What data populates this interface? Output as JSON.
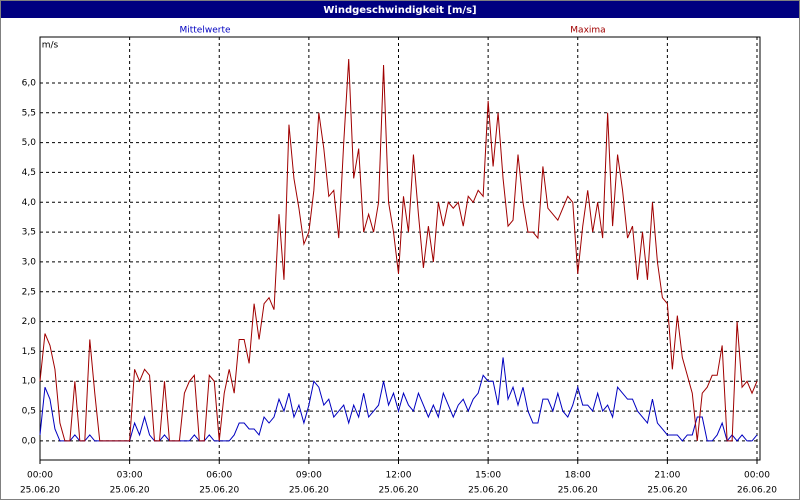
{
  "chart_data": {
    "type": "line",
    "title": "Windgeschwindigkeit [m/s]",
    "y_label": "m/s",
    "x": [
      0,
      10,
      20,
      30,
      40,
      50,
      60,
      70,
      80,
      90,
      100,
      110,
      120,
      130,
      140,
      150,
      160,
      170,
      180,
      190,
      200,
      210,
      220,
      230,
      240,
      250,
      260,
      270,
      280,
      290,
      300,
      310,
      320,
      330,
      340,
      350,
      360,
      370,
      380,
      390,
      400,
      410,
      420,
      430,
      440,
      450,
      460,
      470,
      480,
      490,
      500,
      510,
      520,
      530,
      540,
      550,
      560,
      570,
      580,
      590,
      600,
      610,
      620,
      630,
      640,
      650,
      660,
      670,
      680,
      690,
      700,
      710,
      720,
      730,
      740,
      750,
      760,
      770,
      780,
      790,
      800,
      810,
      820,
      830,
      840,
      850,
      860,
      870,
      880,
      890,
      900,
      910,
      920,
      930,
      940,
      950,
      960,
      970,
      980,
      990,
      1000,
      1010,
      1020,
      1030,
      1040,
      1050,
      1060,
      1070,
      1080,
      1090,
      1100,
      1110,
      1120,
      1130,
      1140,
      1150,
      1160,
      1170,
      1180,
      1190,
      1200,
      1210,
      1220,
      1230,
      1240,
      1250,
      1260,
      1270,
      1280,
      1290,
      1300,
      1310,
      1320,
      1330,
      1340,
      1350,
      1360,
      1370,
      1380,
      1390,
      1400,
      1410,
      1420,
      1430,
      1440
    ],
    "series": [
      {
        "name": "Mittelwerte",
        "color": "#0000c0",
        "values": [
          0.1,
          0.9,
          0.7,
          0.2,
          0,
          0,
          0,
          0.1,
          0,
          0,
          0.1,
          0,
          0,
          0,
          0,
          0,
          0,
          0,
          0,
          0.3,
          0.1,
          0.4,
          0.1,
          0,
          0,
          0.1,
          0,
          0,
          0,
          0,
          0,
          0.1,
          0,
          0,
          0.1,
          0,
          0,
          0,
          0,
          0.1,
          0.3,
          0.3,
          0.2,
          0.2,
          0.1,
          0.4,
          0.3,
          0.4,
          0.7,
          0.5,
          0.8,
          0.4,
          0.6,
          0.3,
          0.6,
          1.0,
          0.9,
          0.6,
          0.7,
          0.4,
          0.5,
          0.6,
          0.3,
          0.6,
          0.4,
          0.8,
          0.4,
          0.5,
          0.6,
          1.0,
          0.6,
          0.8,
          0.5,
          0.8,
          0.6,
          0.5,
          0.8,
          0.6,
          0.4,
          0.6,
          0.4,
          0.8,
          0.6,
          0.4,
          0.6,
          0.7,
          0.5,
          0.7,
          0.8,
          1.1,
          1.0,
          1.0,
          0.6,
          1.4,
          0.7,
          0.9,
          0.6,
          0.9,
          0.5,
          0.3,
          0.3,
          0.7,
          0.7,
          0.5,
          0.8,
          0.5,
          0.4,
          0.6,
          0.9,
          0.6,
          0.6,
          0.5,
          0.8,
          0.5,
          0.6,
          0.4,
          0.9,
          0.8,
          0.7,
          0.7,
          0.5,
          0.4,
          0.3,
          0.7,
          0.3,
          0.2,
          0.1,
          0.1,
          0.1,
          0,
          0.1,
          0.1,
          0.4,
          0.4,
          0,
          0,
          0.1,
          0.3,
          0,
          0.1,
          0,
          0.1,
          0,
          0,
          0.1
        ]
      },
      {
        "name": "Maxima",
        "color": "#a00000",
        "values": [
          1.0,
          1.8,
          1.6,
          1.2,
          0.3,
          0,
          0,
          1.0,
          0,
          0,
          1.7,
          0.8,
          0,
          0,
          0,
          0,
          0,
          0,
          0,
          1.2,
          1.0,
          1.2,
          1.1,
          0,
          0,
          1.0,
          0,
          0,
          0,
          0.8,
          1.0,
          1.1,
          0,
          0,
          1.1,
          1.0,
          0,
          0.8,
          1.2,
          0.8,
          1.7,
          1.7,
          1.3,
          2.3,
          1.7,
          2.3,
          2.4,
          2.2,
          3.8,
          2.7,
          5.3,
          4.4,
          3.9,
          3.3,
          3.5,
          4.2,
          5.5,
          4.9,
          4.1,
          4.2,
          3.4,
          5.0,
          6.4,
          4.4,
          4.9,
          3.5,
          3.8,
          3.5,
          4.0,
          6.3,
          4.0,
          3.5,
          2.8,
          4.1,
          3.5,
          4.8,
          3.8,
          2.9,
          3.6,
          3.0,
          4.0,
          3.6,
          4.0,
          3.9,
          4.0,
          3.6,
          4.1,
          4.0,
          4.2,
          4.1,
          5.7,
          4.6,
          5.5,
          4.4,
          3.6,
          3.7,
          4.8,
          4.0,
          3.5,
          3.5,
          3.4,
          4.6,
          3.9,
          3.8,
          3.7,
          3.9,
          4.1,
          4.0,
          2.8,
          3.6,
          4.2,
          3.5,
          4.0,
          3.4,
          5.5,
          3.6,
          4.8,
          4.2,
          3.4,
          3.6,
          2.7,
          3.5,
          2.7,
          4.0,
          3.0,
          2.4,
          2.3,
          1.2,
          2.1,
          1.4,
          1.1,
          0.8,
          0,
          0.8,
          0.9,
          1.1,
          1.1,
          1.6,
          0,
          0,
          2.0,
          0.9,
          1.0,
          0.8,
          1.0
        ]
      }
    ],
    "xlim": [
      0,
      1440
    ],
    "xticks": [
      {
        "value": 0,
        "label": "00:00",
        "date": "25.06.20"
      },
      {
        "value": 180,
        "label": "03:00",
        "date": "25.06.20"
      },
      {
        "value": 360,
        "label": "06:00",
        "date": "25.06.20"
      },
      {
        "value": 540,
        "label": "09:00",
        "date": "25.06.20"
      },
      {
        "value": 720,
        "label": "12:00",
        "date": "25.06.20"
      },
      {
        "value": 900,
        "label": "15:00",
        "date": "25.06.20"
      },
      {
        "value": 1080,
        "label": "18:00",
        "date": "25.06.20"
      },
      {
        "value": 1260,
        "label": "21:00",
        "date": "25.06.20"
      },
      {
        "value": 1440,
        "label": "00:00",
        "date": "26.06.20"
      }
    ],
    "ylim": [
      -0.32,
      6.77
    ],
    "yticks": [
      {
        "value": 0,
        "label": "0,0"
      },
      {
        "value": 0.5,
        "label": "0,5"
      },
      {
        "value": 1,
        "label": "1,0"
      },
      {
        "value": 1.5,
        "label": "1,5"
      },
      {
        "value": 2,
        "label": "2,0"
      },
      {
        "value": 2.5,
        "label": "2,5"
      },
      {
        "value": 3,
        "label": "3,0"
      },
      {
        "value": 3.5,
        "label": "3,5"
      },
      {
        "value": 4,
        "label": "4,0"
      },
      {
        "value": 4.5,
        "label": "4,5"
      },
      {
        "value": 5,
        "label": "5,0"
      },
      {
        "value": 5.5,
        "label": "5,5"
      },
      {
        "value": 6,
        "label": "6,0"
      }
    ],
    "grid": true
  }
}
